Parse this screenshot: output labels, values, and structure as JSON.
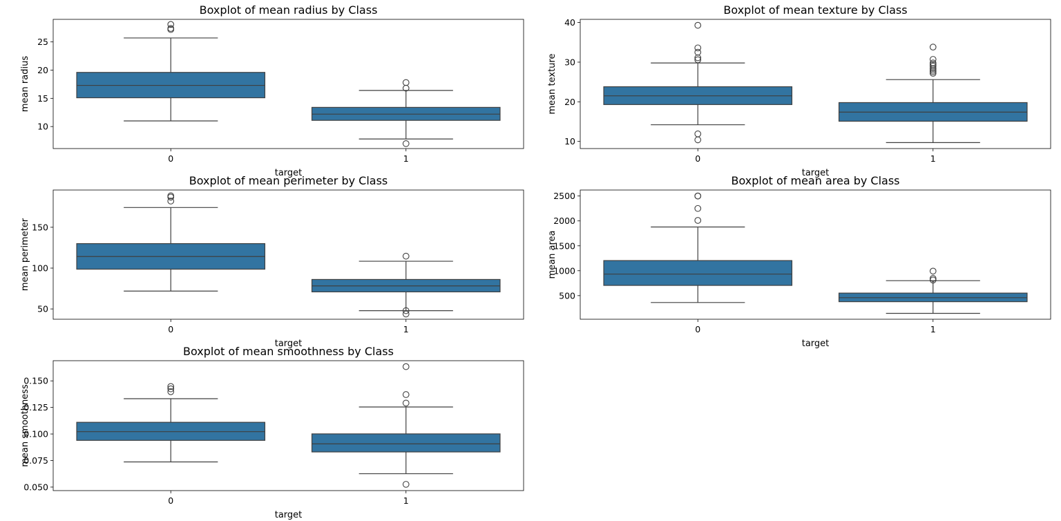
{
  "chart_data": [
    {
      "type": "boxplot",
      "title": "Boxplot of mean radius by Class",
      "xlabel": "target",
      "ylabel": "mean radius",
      "categories": [
        "0",
        "1"
      ],
      "yticks": [
        10,
        15,
        20,
        25
      ],
      "ylim": [
        6.1,
        29.0
      ],
      "boxes": [
        {
          "category": "0",
          "whisker_low": 11.0,
          "q1": 15.1,
          "median": 17.3,
          "q3": 19.6,
          "whisker_high": 25.7,
          "outliers": [
            27.2,
            27.4,
            28.1
          ]
        },
        {
          "category": "1",
          "whisker_low": 7.8,
          "q1": 11.1,
          "median": 12.2,
          "q3": 13.4,
          "whisker_high": 16.4,
          "outliers": [
            6.98,
            16.8,
            17.8
          ]
        }
      ]
    },
    {
      "type": "boxplot",
      "title": "Boxplot of mean texture by Class",
      "xlabel": "target",
      "ylabel": "mean texture",
      "categories": [
        "0",
        "1"
      ],
      "yticks": [
        10,
        20,
        30,
        40
      ],
      "ylim": [
        8.2,
        40.8
      ],
      "boxes": [
        {
          "category": "0",
          "whisker_low": 14.2,
          "q1": 19.3,
          "median": 21.5,
          "q3": 23.8,
          "whisker_high": 29.8,
          "outliers": [
            10.4,
            11.9,
            30.6,
            31.1,
            32.5,
            33.6,
            39.3
          ]
        },
        {
          "category": "1",
          "whisker_low": 9.7,
          "q1": 15.1,
          "median": 17.4,
          "q3": 19.8,
          "whisker_high": 25.6,
          "outliers": [
            27.2,
            27.6,
            28.0,
            28.4,
            29.0,
            29.4,
            29.8,
            30.7,
            33.8
          ]
        }
      ]
    },
    {
      "type": "boxplot",
      "title": "Boxplot of mean perimeter by Class",
      "xlabel": "target",
      "ylabel": "mean perimeter",
      "categories": [
        "0",
        "1"
      ],
      "yticks": [
        50,
        100,
        150
      ],
      "ylim": [
        37.4,
        195.6
      ],
      "boxes": [
        {
          "category": "0",
          "whisker_low": 71.9,
          "q1": 98.7,
          "median": 114.2,
          "q3": 130.0,
          "whisker_high": 174.2,
          "outliers": [
            182.1,
            186.9,
            188.5
          ]
        },
        {
          "category": "1",
          "whisker_low": 47.9,
          "q1": 70.9,
          "median": 78.2,
          "q3": 86.1,
          "whisker_high": 108.4,
          "outliers": [
            43.8,
            47.9,
            114.6
          ]
        }
      ]
    },
    {
      "type": "boxplot",
      "title": "Boxplot of mean area by Class",
      "xlabel": "target",
      "ylabel": "mean area",
      "categories": [
        "0",
        "1"
      ],
      "yticks": [
        500,
        1000,
        1500,
        2000,
        2500
      ],
      "ylim": [
        26.1,
        2620.2
      ],
      "boxes": [
        {
          "category": "0",
          "whisker_low": 361.6,
          "q1": 705.3,
          "median": 932.0,
          "q3": 1203.8,
          "whisker_high": 1878.0,
          "outliers": [
            2010.0,
            2250.0,
            2499.0,
            2501.0
          ]
        },
        {
          "category": "1",
          "whisker_low": 143.5,
          "q1": 378.2,
          "median": 458.4,
          "q3": 551.1,
          "whisker_high": 800.0,
          "outliers": [
            813.0,
            845.0,
            992.1
          ]
        }
      ]
    },
    {
      "type": "boxplot",
      "title": "Boxplot of mean smoothness by Class",
      "xlabel": "target",
      "ylabel": "mean smoothness",
      "categories": [
        "0",
        "1"
      ],
      "yticks": [
        "0.050",
        "0.075",
        "0.100",
        "0.125",
        "0.150"
      ],
      "ylim": [
        0.0467,
        0.169
      ],
      "boxes": [
        {
          "category": "0",
          "whisker_low": 0.0737,
          "q1": 0.094,
          "median": 0.1022,
          "q3": 0.111,
          "whisker_high": 0.1332,
          "outliers": [
            0.1398,
            0.1425,
            0.1447
          ]
        },
        {
          "category": "1",
          "whisker_low": 0.0626,
          "q1": 0.0831,
          "median": 0.0907,
          "q3": 0.1001,
          "whisker_high": 0.1254,
          "outliers": [
            0.0526,
            0.1291,
            0.1371,
            0.1634
          ]
        }
      ]
    }
  ],
  "style": {
    "box_fill": "#3274a1",
    "line_color": "#3f3f3f",
    "axis_color": "#000000",
    "background": "#ffffff"
  }
}
